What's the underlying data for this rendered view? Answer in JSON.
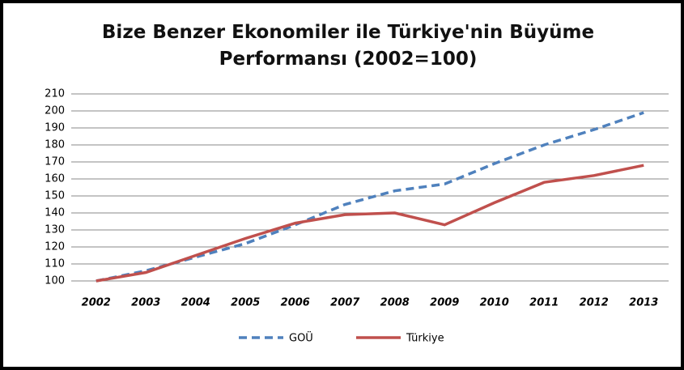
{
  "chart_data": {
    "type": "line",
    "title": "Bize Benzer Ekonomiler ile Türkiye'nin Büyüme Performansı (2002=100)",
    "categories": [
      "2002",
      "2003",
      "2004",
      "2005",
      "2006",
      "2007",
      "2008",
      "2009",
      "2010",
      "2011",
      "2012",
      "2013"
    ],
    "series": [
      {
        "name": "GOÜ",
        "color": "#4f81bd",
        "dash": true,
        "values": [
          100,
          106,
          114,
          122,
          133,
          145,
          153,
          157,
          169,
          180,
          189,
          199
        ]
      },
      {
        "name": "Türkiye",
        "color": "#c0504d",
        "dash": false,
        "values": [
          100,
          105,
          115,
          125,
          134,
          139,
          140,
          133,
          146,
          158,
          162,
          168
        ]
      }
    ],
    "ylim": [
      100,
      210
    ],
    "yticks": [
      100,
      110,
      120,
      130,
      140,
      150,
      160,
      170,
      180,
      190,
      200,
      210
    ],
    "grid": true
  }
}
